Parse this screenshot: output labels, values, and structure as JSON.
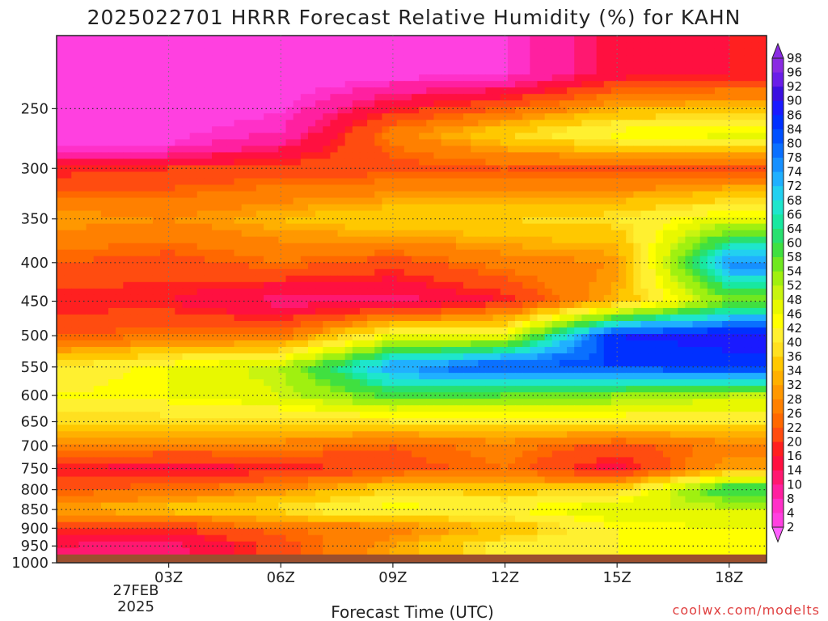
{
  "header": {
    "title": "2025022701 HRRR Forecast Relative Humidity (%) for KAHN"
  },
  "footer": {
    "credit": "coolwx.com/modelts"
  },
  "chart_data": {
    "type": "heatmap",
    "title": "2025022701 HRRR Forecast Relative Humidity (%) for KAHN",
    "xlabel": "Forecast Time (UTC)",
    "ylabel": "",
    "x_ticks": [
      "03Z",
      "06Z",
      "09Z",
      "12Z",
      "15Z",
      "18Z"
    ],
    "x_tick_hours": [
      3,
      6,
      9,
      12,
      15,
      18
    ],
    "x_range_hours": [
      0,
      19
    ],
    "date_label_line1": "27FEB",
    "date_label_line2": "2025",
    "y_ticks": [
      250,
      300,
      350,
      400,
      450,
      500,
      550,
      600,
      650,
      700,
      750,
      800,
      850,
      900,
      950,
      1000
    ],
    "y_range_hPa": [
      200,
      1000
    ],
    "y_scale": "log",
    "grid": true,
    "colorbar_labels": [
      98,
      96,
      92,
      90,
      86,
      84,
      80,
      78,
      74,
      72,
      68,
      66,
      64,
      60,
      58,
      54,
      52,
      48,
      46,
      42,
      40,
      36,
      34,
      32,
      28,
      26,
      22,
      20,
      16,
      14,
      10,
      8,
      4,
      2
    ],
    "colorbar_colors": [
      "#8a2be2",
      "#6a1ee8",
      "#3b10e0",
      "#1a1aff",
      "#0030ff",
      "#0050ff",
      "#0a70ff",
      "#1690ff",
      "#20b0ff",
      "#22d0f0",
      "#1ee6cc",
      "#18e8a0",
      "#28e070",
      "#40e040",
      "#70e820",
      "#a0f010",
      "#c8f410",
      "#e8f800",
      "#ffff00",
      "#fff030",
      "#ffe020",
      "#ffc800",
      "#ffb000",
      "#ff9800",
      "#ff8000",
      "#ff6800",
      "#ff4c10",
      "#ff2020",
      "#ff1040",
      "#ff1870",
      "#ff20a0",
      "#ff30c8",
      "#ff40e0",
      "#ff60ff"
    ],
    "surface_color": "#9b4f2e",
    "series": [
      {
        "hour": 0,
        "profile": [
          [
            225,
            4
          ],
          [
            280,
            6
          ],
          [
            300,
            20
          ],
          [
            350,
            34
          ],
          [
            400,
            26
          ],
          [
            450,
            20
          ],
          [
            500,
            26
          ],
          [
            550,
            42
          ],
          [
            600,
            46
          ],
          [
            650,
            40
          ],
          [
            700,
            32
          ],
          [
            750,
            20
          ],
          [
            800,
            26
          ],
          [
            850,
            34
          ],
          [
            900,
            22
          ],
          [
            950,
            16
          ]
        ]
      },
      {
        "hour": 3,
        "profile": [
          [
            225,
            4
          ],
          [
            280,
            8
          ],
          [
            300,
            22
          ],
          [
            350,
            32
          ],
          [
            400,
            24
          ],
          [
            450,
            20
          ],
          [
            500,
            28
          ],
          [
            550,
            48
          ],
          [
            600,
            48
          ],
          [
            650,
            40
          ],
          [
            700,
            30
          ],
          [
            750,
            18
          ],
          [
            800,
            28
          ],
          [
            850,
            38
          ],
          [
            900,
            22
          ],
          [
            950,
            14
          ]
        ]
      },
      {
        "hour": 6,
        "profile": [
          [
            225,
            4
          ],
          [
            270,
            10
          ],
          [
            300,
            24
          ],
          [
            350,
            36
          ],
          [
            400,
            28
          ],
          [
            450,
            14
          ],
          [
            500,
            28
          ],
          [
            550,
            54
          ],
          [
            600,
            52
          ],
          [
            650,
            40
          ],
          [
            700,
            30
          ],
          [
            750,
            20
          ],
          [
            800,
            32
          ],
          [
            850,
            42
          ],
          [
            900,
            28
          ],
          [
            950,
            24
          ]
        ]
      },
      {
        "hour": 9,
        "profile": [
          [
            225,
            6
          ],
          [
            270,
            30
          ],
          [
            300,
            24
          ],
          [
            350,
            40
          ],
          [
            400,
            24
          ],
          [
            450,
            14
          ],
          [
            500,
            48
          ],
          [
            550,
            78
          ],
          [
            600,
            62
          ],
          [
            650,
            42
          ],
          [
            700,
            26
          ],
          [
            750,
            24
          ],
          [
            800,
            40
          ],
          [
            850,
            48
          ],
          [
            900,
            30
          ],
          [
            950,
            34
          ]
        ]
      },
      {
        "hour": 12,
        "profile": [
          [
            225,
            8
          ],
          [
            270,
            40
          ],
          [
            300,
            26
          ],
          [
            350,
            40
          ],
          [
            400,
            30
          ],
          [
            450,
            20
          ],
          [
            500,
            50
          ],
          [
            550,
            86
          ],
          [
            600,
            60
          ],
          [
            650,
            42
          ],
          [
            700,
            30
          ],
          [
            750,
            28
          ],
          [
            800,
            38
          ],
          [
            850,
            46
          ],
          [
            900,
            36
          ],
          [
            950,
            44
          ]
        ]
      },
      {
        "hour": 15,
        "profile": [
          [
            225,
            18
          ],
          [
            270,
            48
          ],
          [
            300,
            24
          ],
          [
            350,
            42
          ],
          [
            400,
            32
          ],
          [
            450,
            36
          ],
          [
            500,
            90
          ],
          [
            550,
            86
          ],
          [
            600,
            58
          ],
          [
            650,
            42
          ],
          [
            700,
            24
          ],
          [
            750,
            18
          ],
          [
            800,
            40
          ],
          [
            850,
            52
          ],
          [
            900,
            46
          ],
          [
            950,
            46
          ]
        ]
      },
      {
        "hour": 18,
        "profile": [
          [
            225,
            20
          ],
          [
            270,
            50
          ],
          [
            300,
            24
          ],
          [
            350,
            50
          ],
          [
            400,
            80
          ],
          [
            450,
            58
          ],
          [
            500,
            92
          ],
          [
            550,
            88
          ],
          [
            600,
            54
          ],
          [
            650,
            42
          ],
          [
            700,
            30
          ],
          [
            750,
            34
          ],
          [
            800,
            66
          ],
          [
            850,
            52
          ],
          [
            900,
            48
          ],
          [
            950,
            46
          ]
        ]
      }
    ]
  }
}
